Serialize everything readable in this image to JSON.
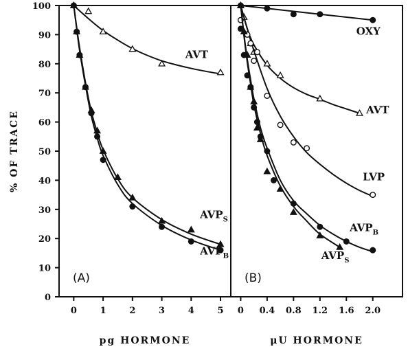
{
  "chart_data": [
    {
      "type": "scatter",
      "panel_label": "(A)",
      "xlabel": "pg HORMONE",
      "ylabel": "% OF TRACE",
      "xlim": [
        -0.5,
        5.35
      ],
      "ylim": [
        0,
        100
      ],
      "xticks": [
        "0",
        "1",
        "2",
        "3",
        "4",
        "5"
      ],
      "xtick_values": [
        0,
        1,
        2,
        3,
        4,
        5
      ],
      "yticks": [
        "0",
        "10",
        "20",
        "30",
        "40",
        "50",
        "60",
        "70",
        "80",
        "90",
        "100"
      ],
      "ytick_values": [
        0,
        10,
        20,
        30,
        40,
        50,
        60,
        70,
        80,
        90,
        100
      ],
      "grid": false,
      "series": [
        {
          "name": "AVT",
          "label_main": "AVT",
          "label_sub": "",
          "marker": "triangle-open",
          "x": [
            0,
            0.5,
            1,
            2,
            3,
            5
          ],
          "y": [
            100,
            98,
            91,
            85,
            80,
            77
          ],
          "curve_x": [
            0,
            0.5,
            1,
            1.5,
            2,
            2.5,
            3,
            3.5,
            4,
            4.5,
            5
          ],
          "curve_y": [
            100,
            95.5,
            91.4,
            88.1,
            85.2,
            82.9,
            81,
            79.6,
            78.4,
            77.4,
            76.5
          ],
          "label_at": [
            3.8,
            82
          ]
        },
        {
          "name": "AVP_S",
          "label_main": "AVP",
          "label_sub": "S",
          "marker": "triangle-filled",
          "x": [
            0,
            0.1,
            0.2,
            0.4,
            0.6,
            0.8,
            1.0,
            1.5,
            2,
            3,
            4,
            5
          ],
          "y": [
            100,
            91,
            83,
            72,
            64,
            57,
            50,
            41,
            34,
            26,
            23,
            18
          ],
          "curve_x": [
            0,
            0.1,
            0.2,
            0.4,
            0.6,
            0.8,
            1.0,
            1.5,
            2,
            3,
            4,
            5
          ],
          "curve_y": [
            100,
            92.5,
            85.5,
            73.5,
            63.5,
            56.5,
            50.5,
            40.5,
            34,
            26.5,
            21.5,
            18
          ],
          "label_at": [
            4.3,
            27
          ]
        },
        {
          "name": "AVP_B",
          "label_main": "AVP",
          "label_sub": "B",
          "marker": "circle-filled",
          "x": [
            0,
            0.1,
            0.2,
            0.4,
            0.6,
            0.8,
            1.0,
            2,
            3,
            4,
            5
          ],
          "y": [
            100,
            91,
            83,
            72,
            63,
            55,
            47,
            31,
            24,
            19,
            16
          ],
          "curve_x": [
            0,
            0.1,
            0.2,
            0.4,
            0.6,
            0.8,
            1.0,
            1.5,
            2,
            3,
            4,
            5
          ],
          "curve_y": [
            100,
            92,
            84.5,
            72.5,
            62,
            54.5,
            48.5,
            38.5,
            32,
            24.5,
            19.5,
            16
          ],
          "label_at": [
            4.3,
            14.5
          ]
        }
      ]
    },
    {
      "type": "scatter",
      "panel_label": "(B)",
      "xlabel": "μU HORMONE",
      "ylabel": "",
      "xlim": [
        -0.15,
        2.45
      ],
      "ylim": [
        0,
        100
      ],
      "xticks": [
        "0",
        "0.4",
        "0.8",
        "1.2",
        "1.6",
        "2.0"
      ],
      "xtick_values": [
        0,
        0.4,
        0.8,
        1.2,
        1.6,
        2.0
      ],
      "yticks": [],
      "grid": false,
      "series": [
        {
          "name": "OXY",
          "label_main": "OXY",
          "label_sub": "",
          "marker": "circle-filled",
          "x": [
            0,
            0.4,
            0.8,
            1.2,
            2.0
          ],
          "y": [
            100,
            99,
            97,
            97,
            95
          ],
          "curve_x": [
            0,
            2.0
          ],
          "curve_y": [
            100,
            95
          ],
          "label_at": [
            1.75,
            90
          ]
        },
        {
          "name": "AVT",
          "label_main": "AVT",
          "label_sub": "",
          "marker": "triangle-open",
          "x": [
            0,
            0.05,
            0.1,
            0.15,
            0.2,
            0.4,
            0.6,
            1.2,
            1.8
          ],
          "y": [
            100,
            96,
            90,
            87,
            84,
            80,
            76,
            68,
            63
          ],
          "curve_x": [
            0,
            0.1,
            0.2,
            0.4,
            0.6,
            0.8,
            1.0,
            1.2,
            1.4,
            1.6,
            1.8
          ],
          "curve_y": [
            100,
            92,
            86.5,
            79.5,
            75,
            71.8,
            69.5,
            67.8,
            66,
            64.5,
            63
          ],
          "label_at": [
            1.9,
            63
          ]
        },
        {
          "name": "LVP",
          "label_main": "LVP",
          "label_sub": "",
          "marker": "circle-open",
          "x": [
            0,
            0.1,
            0.15,
            0.2,
            0.25,
            0.4,
            0.6,
            0.8,
            1.0,
            2.0
          ],
          "y": [
            95,
            90,
            87,
            81,
            84,
            69,
            59,
            53,
            51,
            35
          ],
          "curve_x": [
            0,
            0.1,
            0.2,
            0.4,
            0.6,
            0.8,
            1.0,
            1.2,
            1.4,
            1.6,
            1.8,
            2.0
          ],
          "curve_y": [
            100,
            92,
            84.5,
            71.5,
            62,
            55,
            49.5,
            45.5,
            42,
            39,
            36.5,
            34.5
          ],
          "label_at": [
            1.85,
            40
          ]
        },
        {
          "name": "AVP_B",
          "label_main": "AVP",
          "label_sub": "B",
          "marker": "circle-filled",
          "x": [
            0,
            0.05,
            0.1,
            0.15,
            0.2,
            0.25,
            0.3,
            0.4,
            0.5,
            0.8,
            1.2,
            1.6,
            2.0
          ],
          "y": [
            92,
            83,
            76,
            72,
            65,
            60,
            55,
            50,
            40,
            32,
            24,
            19,
            16
          ],
          "curve_x": [
            0,
            0.05,
            0.1,
            0.15,
            0.2,
            0.3,
            0.4,
            0.6,
            0.8,
            1.0,
            1.2,
            1.4,
            1.6,
            1.8,
            2.0
          ],
          "curve_y": [
            100,
            90,
            81.5,
            74.5,
            68,
            58,
            51,
            40,
            33,
            28.5,
            24.5,
            21.5,
            19,
            17,
            15.5
          ],
          "label_at": [
            1.65,
            22.5
          ]
        },
        {
          "name": "AVP_S",
          "label_main": "AVP",
          "label_sub": "S",
          "marker": "triangle-filled",
          "x": [
            0,
            0.05,
            0.1,
            0.15,
            0.2,
            0.25,
            0.3,
            0.4,
            0.6,
            0.8,
            1.2,
            1.5
          ],
          "y": [
            100,
            91,
            83,
            72,
            67,
            58,
            54,
            43,
            37,
            29,
            21,
            17
          ],
          "curve_x": [
            0,
            0.05,
            0.1,
            0.15,
            0.2,
            0.3,
            0.4,
            0.6,
            0.8,
            1.0,
            1.2,
            1.5
          ],
          "curve_y": [
            100,
            89.5,
            80.5,
            73,
            66,
            56,
            48.5,
            38,
            31,
            26,
            21.5,
            17
          ],
          "label_at": [
            1.22,
            13
          ]
        }
      ]
    }
  ]
}
